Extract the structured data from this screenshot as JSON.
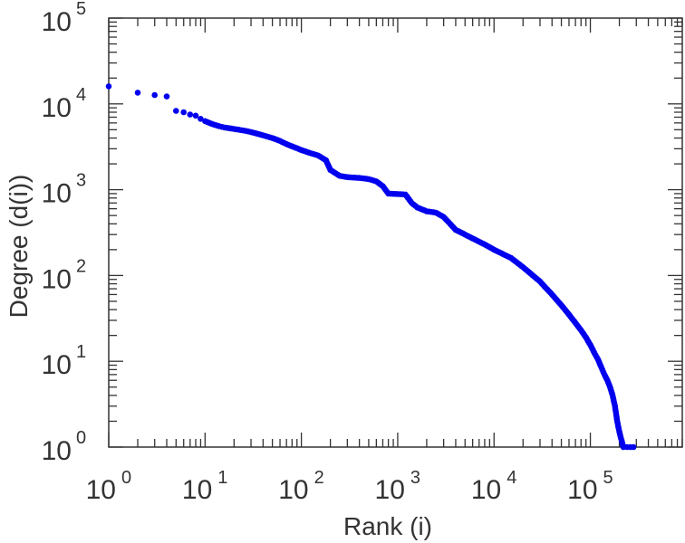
{
  "chart_data": {
    "type": "scatter",
    "xlabel": "Rank (i)",
    "ylabel": "Degree (d(i))",
    "x_scale": "log",
    "y_scale": "log",
    "xlim": [
      1,
      900000
    ],
    "ylim": [
      1,
      100000
    ],
    "grid": false,
    "marker_color": "#0000ee",
    "x_ticks": [
      {
        "base": "10",
        "exp": "0"
      },
      {
        "base": "10",
        "exp": "1"
      },
      {
        "base": "10",
        "exp": "2"
      },
      {
        "base": "10",
        "exp": "3"
      },
      {
        "base": "10",
        "exp": "4"
      },
      {
        "base": "10",
        "exp": "5"
      }
    ],
    "y_ticks": [
      {
        "base": "10",
        "exp": "0"
      },
      {
        "base": "10",
        "exp": "1"
      },
      {
        "base": "10",
        "exp": "2"
      },
      {
        "base": "10",
        "exp": "3"
      },
      {
        "base": "10",
        "exp": "4"
      },
      {
        "base": "10",
        "exp": "5"
      }
    ],
    "series": [
      {
        "points": [
          [
            1,
            16000
          ],
          [
            2,
            13500
          ],
          [
            3,
            12700
          ],
          [
            4,
            12200
          ],
          [
            5,
            8300
          ],
          [
            6,
            8000
          ],
          [
            7,
            7500
          ],
          [
            8,
            7300
          ],
          [
            9,
            6700
          ],
          [
            10,
            6300
          ],
          [
            12,
            5800
          ],
          [
            14,
            5500
          ],
          [
            16,
            5300
          ],
          [
            20,
            5100
          ],
          [
            25,
            4900
          ],
          [
            30,
            4700
          ],
          [
            40,
            4300
          ],
          [
            50,
            4000
          ],
          [
            60,
            3700
          ],
          [
            70,
            3400
          ],
          [
            80,
            3200
          ],
          [
            100,
            2900
          ],
          [
            120,
            2700
          ],
          [
            150,
            2500
          ],
          [
            180,
            2200
          ],
          [
            200,
            1700
          ],
          [
            250,
            1450
          ],
          [
            300,
            1400
          ],
          [
            400,
            1370
          ],
          [
            500,
            1330
          ],
          [
            600,
            1250
          ],
          [
            700,
            1100
          ],
          [
            800,
            900
          ],
          [
            1000,
            890
          ],
          [
            1200,
            880
          ],
          [
            1400,
            700
          ],
          [
            1600,
            620
          ],
          [
            2000,
            560
          ],
          [
            2500,
            540
          ],
          [
            3000,
            480
          ],
          [
            3500,
            400
          ],
          [
            4000,
            340
          ],
          [
            5000,
            300
          ],
          [
            6000,
            270
          ],
          [
            8000,
            230
          ],
          [
            10000,
            200
          ],
          [
            15000,
            160
          ],
          [
            20000,
            125
          ],
          [
            30000,
            85
          ],
          [
            40000,
            60
          ],
          [
            50000,
            45
          ],
          [
            60000,
            35
          ],
          [
            70000,
            28
          ],
          [
            80000,
            23
          ],
          [
            90000,
            19
          ],
          [
            100000,
            15.5
          ],
          [
            110000,
            12.5
          ],
          [
            120000,
            10.5
          ],
          [
            130000,
            8.5
          ],
          [
            140000,
            7
          ],
          [
            150000,
            6
          ],
          [
            160000,
            5
          ],
          [
            170000,
            4
          ],
          [
            180000,
            3
          ],
          [
            190000,
            2
          ],
          [
            200000,
            1.5
          ],
          [
            220000,
            1
          ],
          [
            240000,
            1
          ],
          [
            260000,
            1
          ],
          [
            280000,
            1
          ]
        ]
      }
    ]
  }
}
